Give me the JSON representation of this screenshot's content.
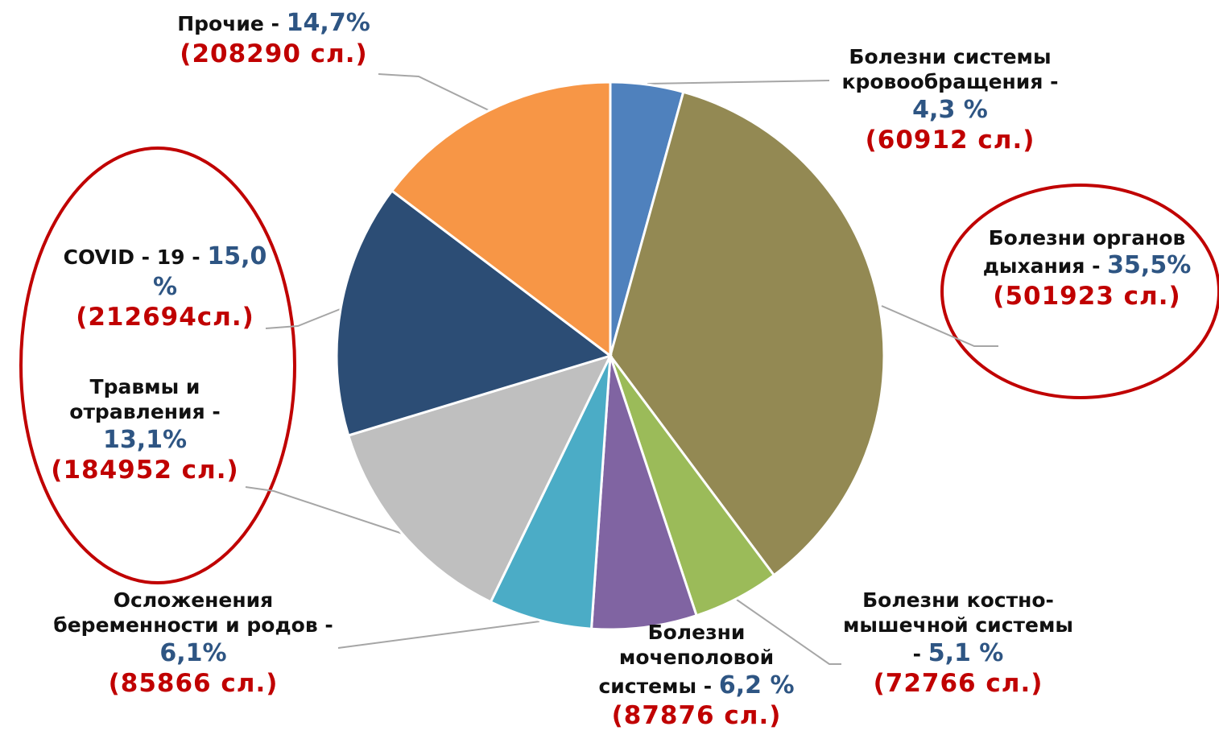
{
  "chart_data": {
    "type": "pie",
    "categories": [
      "Болезни системы кровообращения -",
      "Болезни органов дыхания -",
      "Болезни костно-мышечной системы -",
      "Болезни мочеполовой системы -",
      "Осложенения беременности и родов -",
      "Травмы и отравления -",
      "COVID - 19 -",
      "Прочие -"
    ],
    "values": [
      4.3,
      35.5,
      5.1,
      6.2,
      6.1,
      13.1,
      15.0,
      14.7
    ],
    "value_labels": [
      "4,3 %",
      "35,5%",
      "5,1 %",
      "6,2 %",
      "6,1%",
      "13,1%",
      "15,0 %",
      "14,7%"
    ],
    "counts": [
      60912,
      501923,
      72766,
      87876,
      85866,
      184952,
      212694,
      208290
    ],
    "count_labels": [
      "(60912 сл.)",
      "(501923 сл.)",
      "(72766 сл.)",
      "(87876 сл.)",
      "(85866 сл.)",
      "(184952 сл.)",
      "(212694сл.)",
      "(208290 сл.)"
    ],
    "colors": [
      "#4f81bd",
      "#938953",
      "#9bbb59",
      "#8064a2",
      "#4bacc6",
      "#bfbfbf",
      "#2c4d75",
      "#f79646"
    ]
  }
}
